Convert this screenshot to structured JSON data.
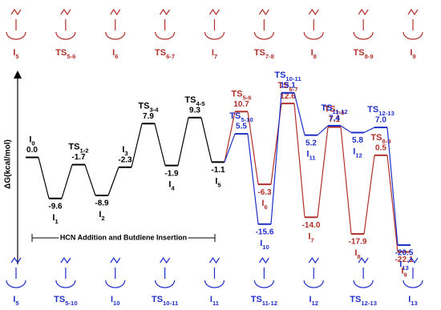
{
  "chart_data": {
    "type": "energy_profile",
    "y_label": "ΔG(kcal/mol)",
    "ylim": [
      -25,
      19
    ],
    "bracket_label": "HCN Addition and Butdiene Insertion",
    "series": [
      {
        "color": "#000000",
        "labels": [
          {
            "base": "I",
            "sub": "0"
          },
          {
            "base": "I",
            "sub": "1"
          },
          {
            "base": "TS",
            "sub": "1-2"
          },
          {
            "base": "I",
            "sub": "2"
          },
          {
            "base": "I",
            "sub": "3"
          },
          {
            "base": "TS",
            "sub": "3-4"
          },
          {
            "base": "I",
            "sub": "4"
          },
          {
            "base": "TS",
            "sub": "4-5"
          },
          {
            "base": "I",
            "sub": "5"
          }
        ],
        "values": [
          0.0,
          -9.6,
          -1.7,
          -8.9,
          -2.3,
          7.9,
          -1.9,
          9.3,
          -1.1
        ],
        "value_labels": [
          "0.0",
          "-9.6",
          "-1.7",
          "-8.9",
          "-2.3",
          "7.9",
          "-1.9",
          "9.3",
          "-1.1"
        ]
      },
      {
        "color": "#b0302a",
        "labels": [
          {
            "base": "TS",
            "sub": "5-6"
          },
          {
            "base": "I",
            "sub": "6"
          },
          {
            "base": "TS",
            "sub": "6-7"
          },
          {
            "base": "I",
            "sub": "7"
          },
          {
            "base": "TS",
            "sub": "7-8"
          },
          {
            "base": "I",
            "sub": "8"
          },
          {
            "base": "TS",
            "sub": "8-9"
          },
          {
            "base": "I",
            "sub": "9"
          }
        ],
        "values": [
          10.7,
          -6.3,
          12.6,
          -14.0,
          7.1,
          -17.9,
          0.5,
          -22.1
        ],
        "value_labels": [
          "10.7",
          "-6.3",
          "12.6",
          "-14.0",
          "7.1",
          "-17.9",
          "0.5",
          "-22.1"
        ]
      },
      {
        "color": "#1f2fc8",
        "labels": [
          {
            "base": "TS",
            "sub": "5-10"
          },
          {
            "base": "I",
            "sub": "10"
          },
          {
            "base": "TS",
            "sub": "10-11"
          },
          {
            "base": "I",
            "sub": "11"
          },
          {
            "base": "TS",
            "sub": "11-12"
          },
          {
            "base": "I",
            "sub": "12"
          },
          {
            "base": "TS",
            "sub": "12-13"
          },
          {
            "base": "I",
            "sub": "13"
          }
        ],
        "values": [
          5.5,
          -15.6,
          15.1,
          5.2,
          7.4,
          5.8,
          7.0,
          -20.5
        ],
        "value_labels": [
          "5.5",
          "-15.6",
          "15.1",
          "5.2",
          "7.4",
          "5.8",
          "7.0",
          "-20.5"
        ]
      }
    ],
    "top_row": {
      "color": "#b0302a",
      "labels": [
        {
          "base": "I",
          "sub": "5"
        },
        {
          "base": "TS",
          "sub": "5-6"
        },
        {
          "base": "I",
          "sub": "6"
        },
        {
          "base": "TS",
          "sub": "6-7"
        },
        {
          "base": "I",
          "sub": "7"
        },
        {
          "base": "TS",
          "sub": "7-8"
        },
        {
          "base": "I",
          "sub": "8"
        },
        {
          "base": "TS",
          "sub": "8-9"
        },
        {
          "base": "I",
          "sub": "9"
        }
      ]
    },
    "bottom_row": {
      "color": "#1f2fc8",
      "labels": [
        {
          "base": "I",
          "sub": "5"
        },
        {
          "base": "TS",
          "sub": "5-10"
        },
        {
          "base": "I",
          "sub": "10"
        },
        {
          "base": "TS",
          "sub": "10-11"
        },
        {
          "base": "I",
          "sub": "11"
        },
        {
          "base": "TS",
          "sub": "11-12"
        },
        {
          "base": "I",
          "sub": "12"
        },
        {
          "base": "TS",
          "sub": "12-13"
        },
        {
          "base": "I",
          "sub": "13"
        }
      ]
    }
  }
}
